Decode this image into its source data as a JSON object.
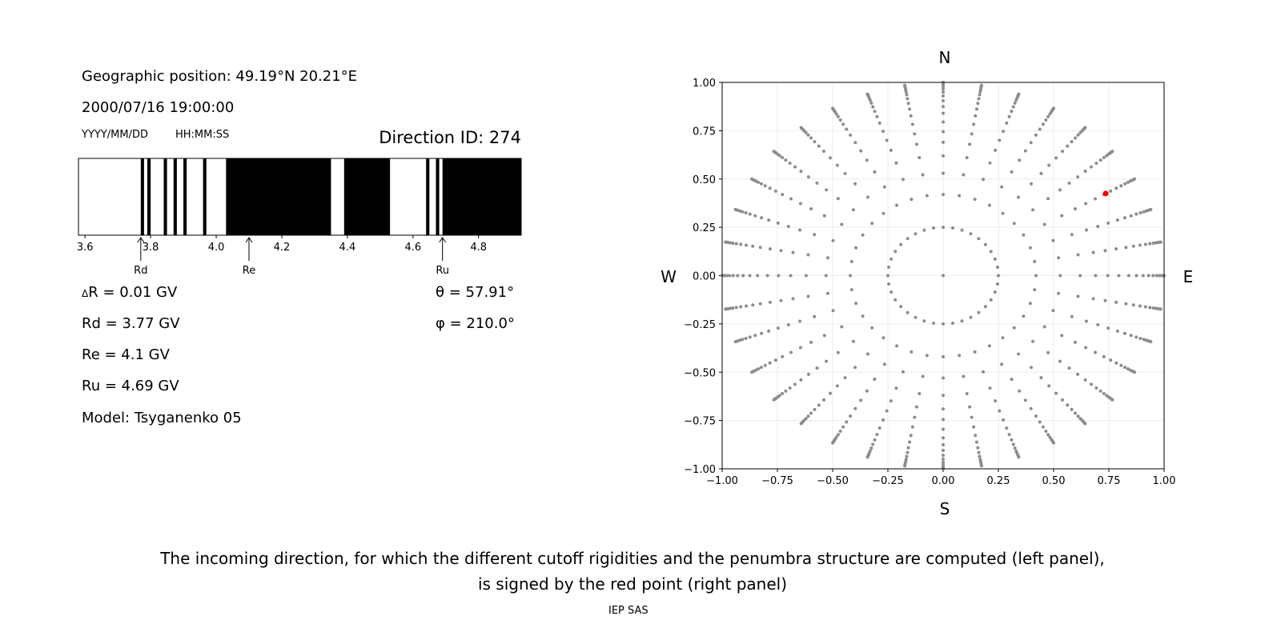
{
  "left_panel": {
    "geo_position": "Geographic position: 49.19°N 20.21°E",
    "datetime": "2000/07/16 19:00:00",
    "date_format": "YYYY/MM/DD",
    "time_format": "HH:MM:SS",
    "direction_id": "Direction ID: 274",
    "delta_r_symbol": "Δ",
    "delta_r": "R = 0.01 GV",
    "rd": "Rd = 3.77 GV",
    "re": "Re = 4.1 GV",
    "ru": "Ru = 4.69 GV",
    "model": "Model: Tsyganenko 05",
    "theta": "θ = 57.91°",
    "phi": "φ = 210.0°"
  },
  "caption": {
    "line1": "The incoming direction, for which the different cutoff rigidities and the penumbra structure are computed (left panel),",
    "line2": "is signed by the red point (right panel)",
    "footer": "IEP SAS"
  },
  "chart_data": [
    {
      "type": "bar",
      "description_kind": "penumbra",
      "xlim": [
        3.58,
        4.93
      ],
      "xticks": [
        3.6,
        3.8,
        4.0,
        4.2,
        4.4,
        4.6,
        4.8
      ],
      "xtick_labels": [
        "3.6",
        "3.8",
        "4.0",
        "4.2",
        "4.4",
        "4.6",
        "4.8"
      ],
      "forbidden_intervals": [
        [
          3.77,
          3.78
        ],
        [
          3.79,
          3.8
        ],
        [
          3.84,
          3.85
        ],
        [
          3.87,
          3.88
        ],
        [
          3.9,
          3.91
        ],
        [
          3.96,
          3.97
        ],
        [
          4.03,
          4.35
        ],
        [
          4.39,
          4.53
        ],
        [
          4.64,
          4.65
        ],
        [
          4.67,
          4.68
        ],
        [
          4.69,
          4.93
        ]
      ],
      "markers": [
        {
          "label": "Rd",
          "value": 3.77
        },
        {
          "label": "Re",
          "value": 4.1
        },
        {
          "label": "Ru",
          "value": 4.69
        }
      ],
      "colors": {
        "forbidden": "#000000",
        "allowed": "#ffffff"
      }
    },
    {
      "type": "scatter",
      "xlim": [
        -1,
        1
      ],
      "ylim": [
        -1,
        1
      ],
      "ticks": [
        -1,
        -0.75,
        -0.5,
        -0.25,
        0,
        0.25,
        0.5,
        0.75,
        1
      ],
      "tick_labels": [
        "−1.00",
        "−0.75",
        "−0.50",
        "−0.25",
        "0.00",
        "0.25",
        "0.50",
        "0.75",
        "1.00"
      ],
      "grid": true,
      "compass": {
        "north": "N",
        "south": "S",
        "west": "W",
        "east": "E"
      },
      "center_point": [
        0,
        0
      ],
      "inner_ring": {
        "radius": 0.25,
        "azimuth_step_deg": 10
      },
      "rays": {
        "azimuth_step_deg": 10,
        "radii": [
          0.42,
          0.53,
          0.62,
          0.69,
          0.745,
          0.795,
          0.84,
          0.875,
          0.905,
          0.93,
          0.95,
          0.966,
          0.978,
          0.988,
          0.995,
          1.0
        ]
      },
      "selected_point": {
        "x": 0.736,
        "y": 0.425
      },
      "colors": {
        "points": "#8c8c8c",
        "selected": "#ff0000",
        "grid": "#ebebeb"
      }
    }
  ]
}
